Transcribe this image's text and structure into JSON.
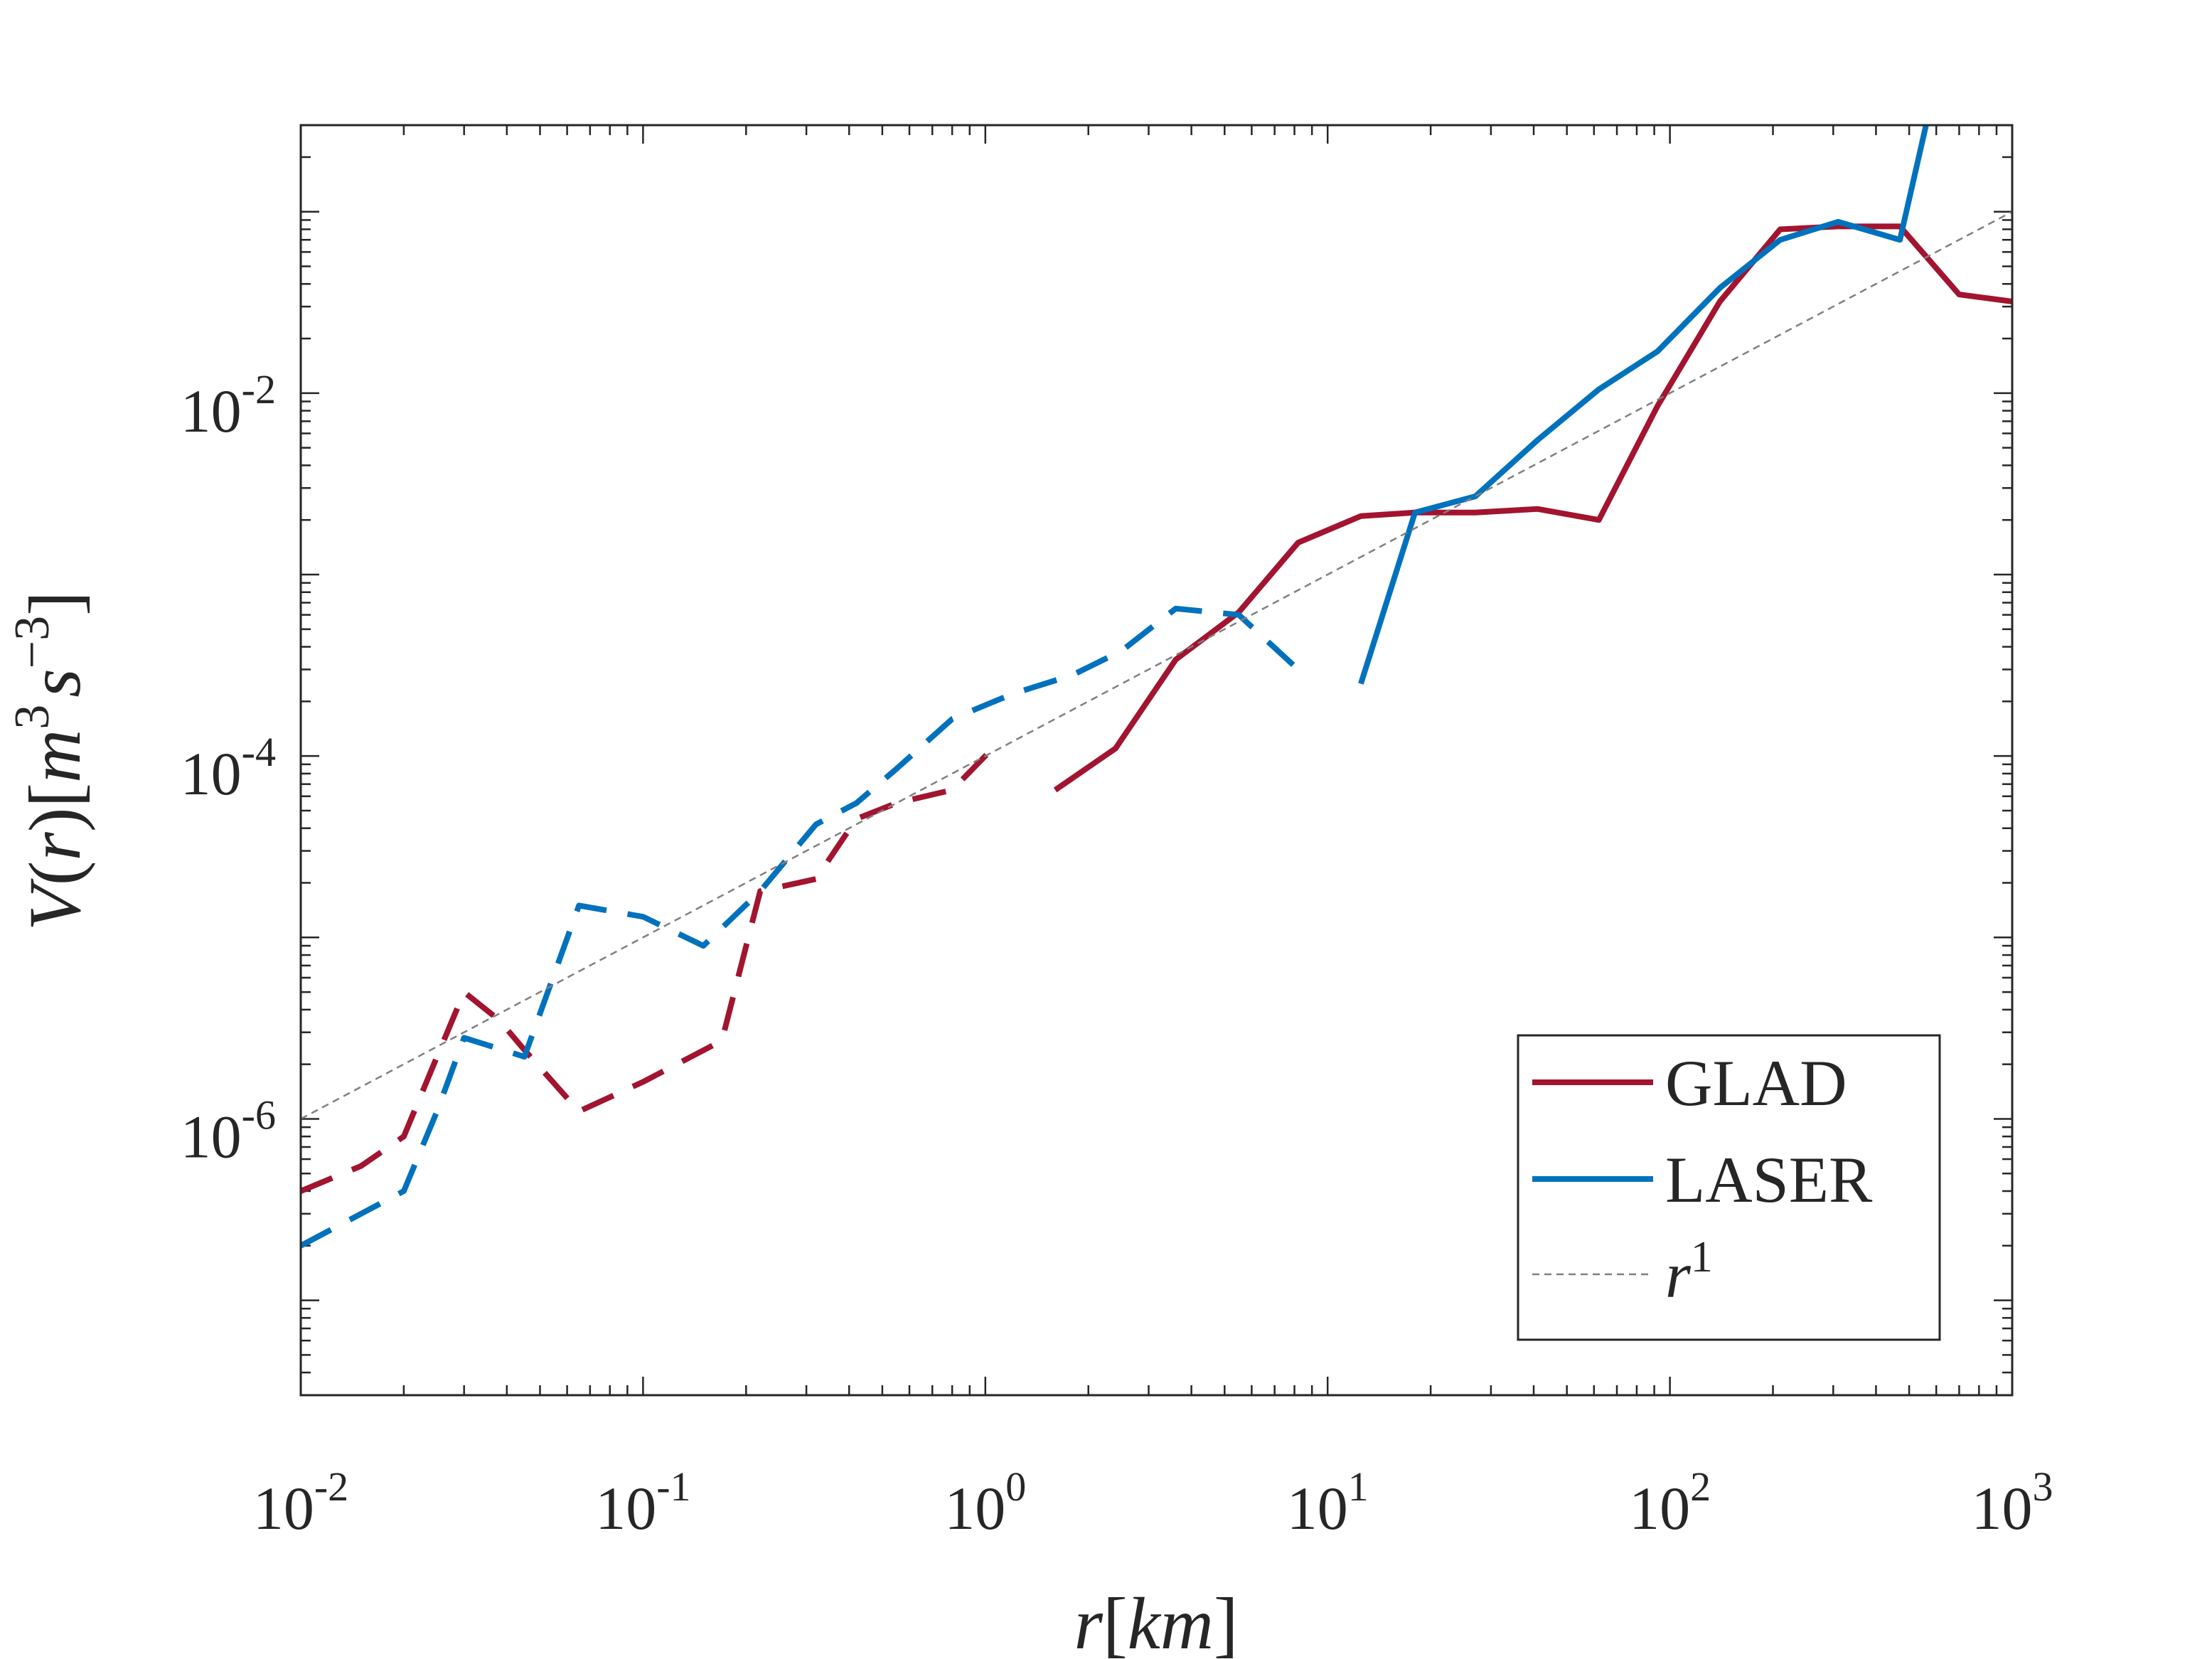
{
  "chart_data": {
    "type": "line",
    "scale": {
      "x": "log",
      "y": "log"
    },
    "xlim": [
      0.01,
      1000
    ],
    "ylim": [
      3e-08,
      0.3
    ],
    "xticks": [
      0.01,
      0.1,
      1,
      10,
      100,
      1000
    ],
    "yticks": [
      1e-06,
      0.0001,
      0.01
    ],
    "xtick_labels": [
      {
        "base": "10",
        "exp": "-2"
      },
      {
        "base": "10",
        "exp": "-1"
      },
      {
        "base": "10",
        "exp": "0"
      },
      {
        "base": "10",
        "exp": "1"
      },
      {
        "base": "10",
        "exp": "2"
      },
      {
        "base": "10",
        "exp": "3"
      }
    ],
    "ytick_labels": [
      {
        "base": "10",
        "exp": "-6"
      },
      {
        "base": "10",
        "exp": "-4"
      },
      {
        "base": "10",
        "exp": "-2"
      }
    ],
    "xlabel": {
      "var": "r",
      "unit": "km"
    },
    "ylabel": {
      "func": "V",
      "arg": "r",
      "unit_m": "m",
      "exp_m": "3",
      "unit_s": "s",
      "exp_s": "−3"
    },
    "grid": false,
    "legend_position": "bottom-right",
    "legend": [
      {
        "label": "GLAD",
        "color": "#A2142F",
        "style": "solid",
        "ital": false
      },
      {
        "label": "LASER",
        "color": "#0072BD",
        "style": "solid",
        "ital": false
      },
      {
        "label": "r",
        "sup": "1",
        "color": "#808080",
        "style": "dotted",
        "ital": true
      }
    ],
    "series": [
      {
        "name": "GLAD (dashed)",
        "color": "#A2142F",
        "dash": true,
        "x": [
          0.01,
          0.015,
          0.02,
          0.025,
          0.03,
          0.038,
          0.045,
          0.065,
          0.1,
          0.17,
          0.22,
          0.32,
          0.42,
          0.55,
          0.8,
          1.05
        ],
        "y": [
          4e-07,
          5.5e-07,
          8e-07,
          2.2e-06,
          5e-06,
          3.5e-06,
          2.4e-06,
          1.1e-06,
          1.6e-06,
          2.7e-06,
          1.8e-05,
          2.1e-05,
          4.5e-05,
          5.5e-05,
          6.5e-05,
          0.00011
        ]
      },
      {
        "name": "GLAD",
        "color": "#A2142F",
        "dash": false,
        "x": [
          1.6,
          2.4,
          3.6,
          5.5,
          8.2,
          12.5,
          18,
          27,
          41,
          62,
          92,
          140,
          210,
          310,
          470,
          700,
          1000
        ],
        "y": [
          6.5e-05,
          0.00011,
          0.00034,
          0.00062,
          0.0015,
          0.0021,
          0.0022,
          0.0022,
          0.0023,
          0.002,
          0.0085,
          0.032,
          0.08,
          0.083,
          0.083,
          0.035,
          0.032
        ]
      },
      {
        "name": "LASER (dashed)",
        "color": "#0072BD",
        "dash": true,
        "x": [
          0.01,
          0.015,
          0.02,
          0.025,
          0.03,
          0.045,
          0.065,
          0.1,
          0.15,
          0.22,
          0.32,
          0.42,
          0.55,
          0.8,
          1.2,
          1.8,
          2.5,
          3.6,
          5.5,
          8.2
        ],
        "y": [
          2e-07,
          3e-07,
          4e-07,
          1.1e-06,
          2.8e-06,
          2.2e-06,
          1.5e-05,
          1.3e-05,
          9e-06,
          1.8e-05,
          4.2e-05,
          5.5e-05,
          8.5e-05,
          0.00016,
          0.00022,
          0.00028,
          0.00038,
          0.00065,
          0.0006,
          0.0003
        ]
      },
      {
        "name": "LASER",
        "color": "#0072BD",
        "dash": false,
        "x": [
          12.5,
          18,
          27,
          41,
          62,
          92,
          140,
          210,
          310,
          470,
          560
        ],
        "y": [
          0.00025,
          0.0022,
          0.0027,
          0.0055,
          0.0105,
          0.017,
          0.038,
          0.07,
          0.088,
          0.07,
          0.3
        ]
      },
      {
        "name": "r^1",
        "color": "#808080",
        "dash": true,
        "reference": true,
        "x": [
          0.01,
          1000
        ],
        "y": [
          1e-06,
          0.1
        ]
      }
    ]
  }
}
